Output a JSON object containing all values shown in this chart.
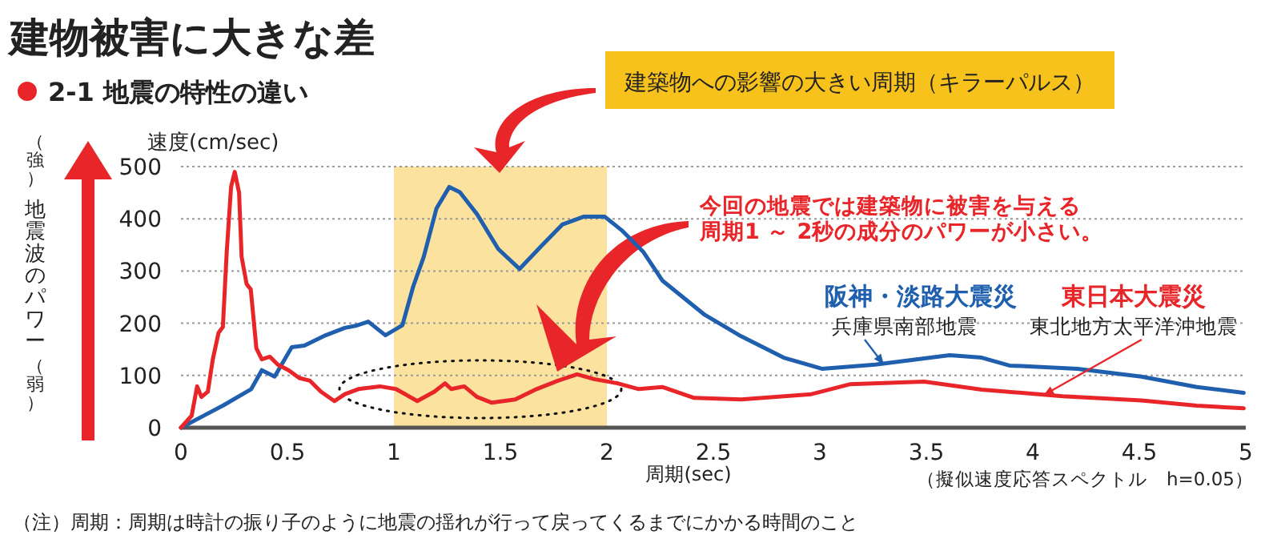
{
  "chart_data": {
    "type": "line",
    "title": "建物被害に大きな差",
    "subtitle": "2-1 地震の特性の違い",
    "xlabel": "周期(sec)",
    "ylabel": "速度(cm/sec)",
    "xlim": [
      0,
      5
    ],
    "ylim": [
      0,
      500
    ],
    "xticks": [
      0,
      0.5,
      1,
      1.5,
      2,
      2.5,
      3,
      3.5,
      4,
      4.5,
      5
    ],
    "yticks": [
      0,
      100,
      200,
      300,
      400,
      500
    ],
    "grid": "y",
    "legend": false,
    "marker": "none",
    "line_style": "solid",
    "bands": [
      {
        "axis": "x",
        "from": 1,
        "to": 2,
        "color": "#fbe29e"
      }
    ],
    "series": [
      {
        "name": "阪神・淡路大震災",
        "color": "#1f5fae",
        "x": [
          0,
          0.2,
          0.33,
          0.38,
          0.44,
          0.52,
          0.58,
          0.68,
          0.77,
          0.82,
          0.88,
          0.96,
          1.04,
          1.09,
          1.14,
          1.2,
          1.26,
          1.31,
          1.39,
          1.49,
          1.59,
          1.69,
          1.79,
          1.89,
          1.99,
          2.07,
          2.17,
          2.26,
          2.46,
          2.63,
          2.83,
          3.01,
          3.26,
          3.61,
          3.76,
          3.89,
          4.21,
          4.51,
          4.77,
          4.99
        ],
        "values": [
          0,
          43,
          74,
          110,
          98,
          154,
          157,
          177,
          191,
          195,
          203,
          177,
          196,
          270,
          327,
          420,
          461,
          451,
          409,
          342,
          304,
          347,
          389,
          404,
          404,
          378,
          337,
          282,
          216,
          175,
          134,
          113,
          121,
          139,
          134,
          119,
          113,
          98,
          78,
          67
        ]
      },
      {
        "name": "東日本大震災",
        "color": "#e8262a",
        "x": [
          0,
          0.05,
          0.076,
          0.096,
          0.126,
          0.15,
          0.177,
          0.197,
          0.215,
          0.235,
          0.253,
          0.273,
          0.285,
          0.308,
          0.328,
          0.354,
          0.38,
          0.417,
          0.455,
          0.505,
          0.556,
          0.606,
          0.657,
          0.72,
          0.77,
          0.833,
          0.934,
          1.01,
          1.11,
          1.19,
          1.24,
          1.27,
          1.33,
          1.39,
          1.46,
          1.57,
          1.67,
          1.77,
          1.86,
          1.94,
          2.05,
          2.15,
          2.26,
          2.41,
          2.63,
          2.96,
          3.14,
          3.49,
          3.76,
          4.14,
          4.51,
          4.77,
          4.99
        ],
        "values": [
          0,
          23,
          79,
          59,
          69,
          131,
          182,
          193,
          337,
          461,
          490,
          450,
          327,
          275,
          265,
          152,
          131,
          136,
          121,
          110,
          95,
          90,
          69,
          51,
          64,
          74,
          79,
          74,
          51,
          69,
          85,
          74,
          79,
          59,
          48,
          54,
          74,
          90,
          102,
          93,
          85,
          74,
          78,
          57,
          54,
          64,
          83,
          88,
          73,
          60,
          52,
          42,
          37
        ]
      }
    ],
    "annotations": [
      "今回の地震では建築物に被害を与える",
      "周期1 ～ 2秒の成分のパワーが小さい。",
      "建築物への影響の大きい周期（キラーパルス）",
      {
        "text": "兵庫県南部地震",
        "x": 3.3,
        "y": 121
      },
      {
        "text": "東北地方太平洋沖地震",
        "x": 4.05,
        "y": 62
      },
      "（強）",
      "地震波のパワー",
      "（弱）",
      "（擬似速度応答スペクトル　h=0.05）",
      "（注）周期：周期は時計の振り子のように地震の揺れが行って戻ってくるまでにかかる時間のこと"
    ]
  }
}
